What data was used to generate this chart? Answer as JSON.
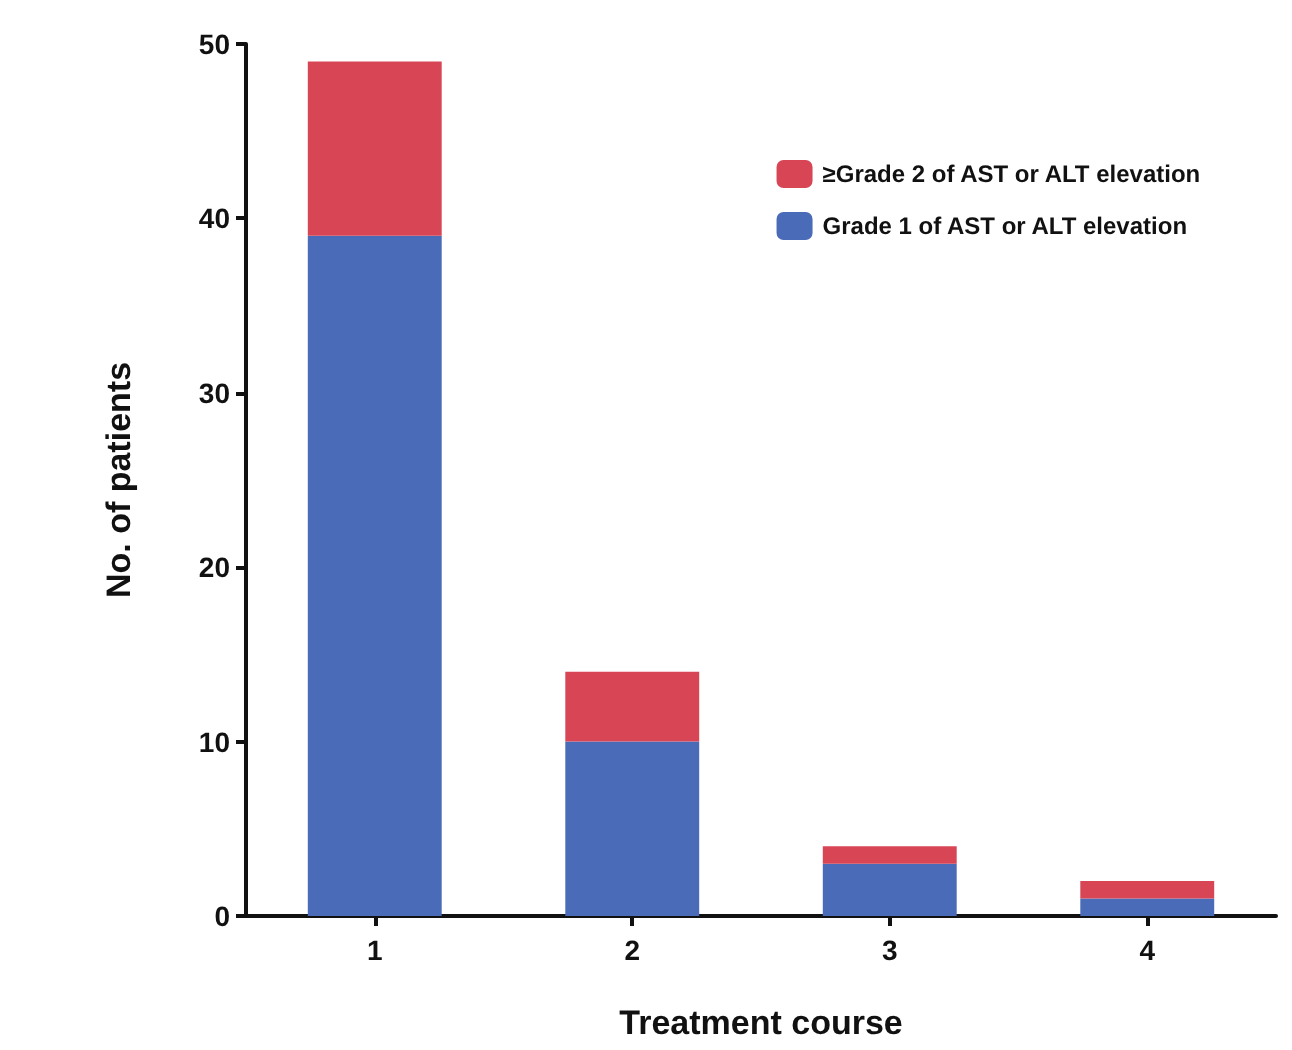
{
  "chart_data": {
    "type": "bar",
    "stacked": true,
    "xlabel": "Treatment course",
    "ylabel": "No. of patients",
    "categories": [
      "1",
      "2",
      "3",
      "4"
    ],
    "series": [
      {
        "name": "Grade 1 of AST or ALT elevation",
        "color": "#4a6bb8",
        "values": [
          39,
          10,
          3,
          1
        ]
      },
      {
        "name": "≥Grade 2 of AST or ALT elevation",
        "color": "#d84656",
        "values": [
          10,
          4,
          1,
          1
        ]
      }
    ],
    "ylim": [
      0,
      50
    ],
    "yticks": [
      0,
      10,
      20,
      30,
      40,
      50
    ],
    "grid": false,
    "legend": "top right"
  }
}
